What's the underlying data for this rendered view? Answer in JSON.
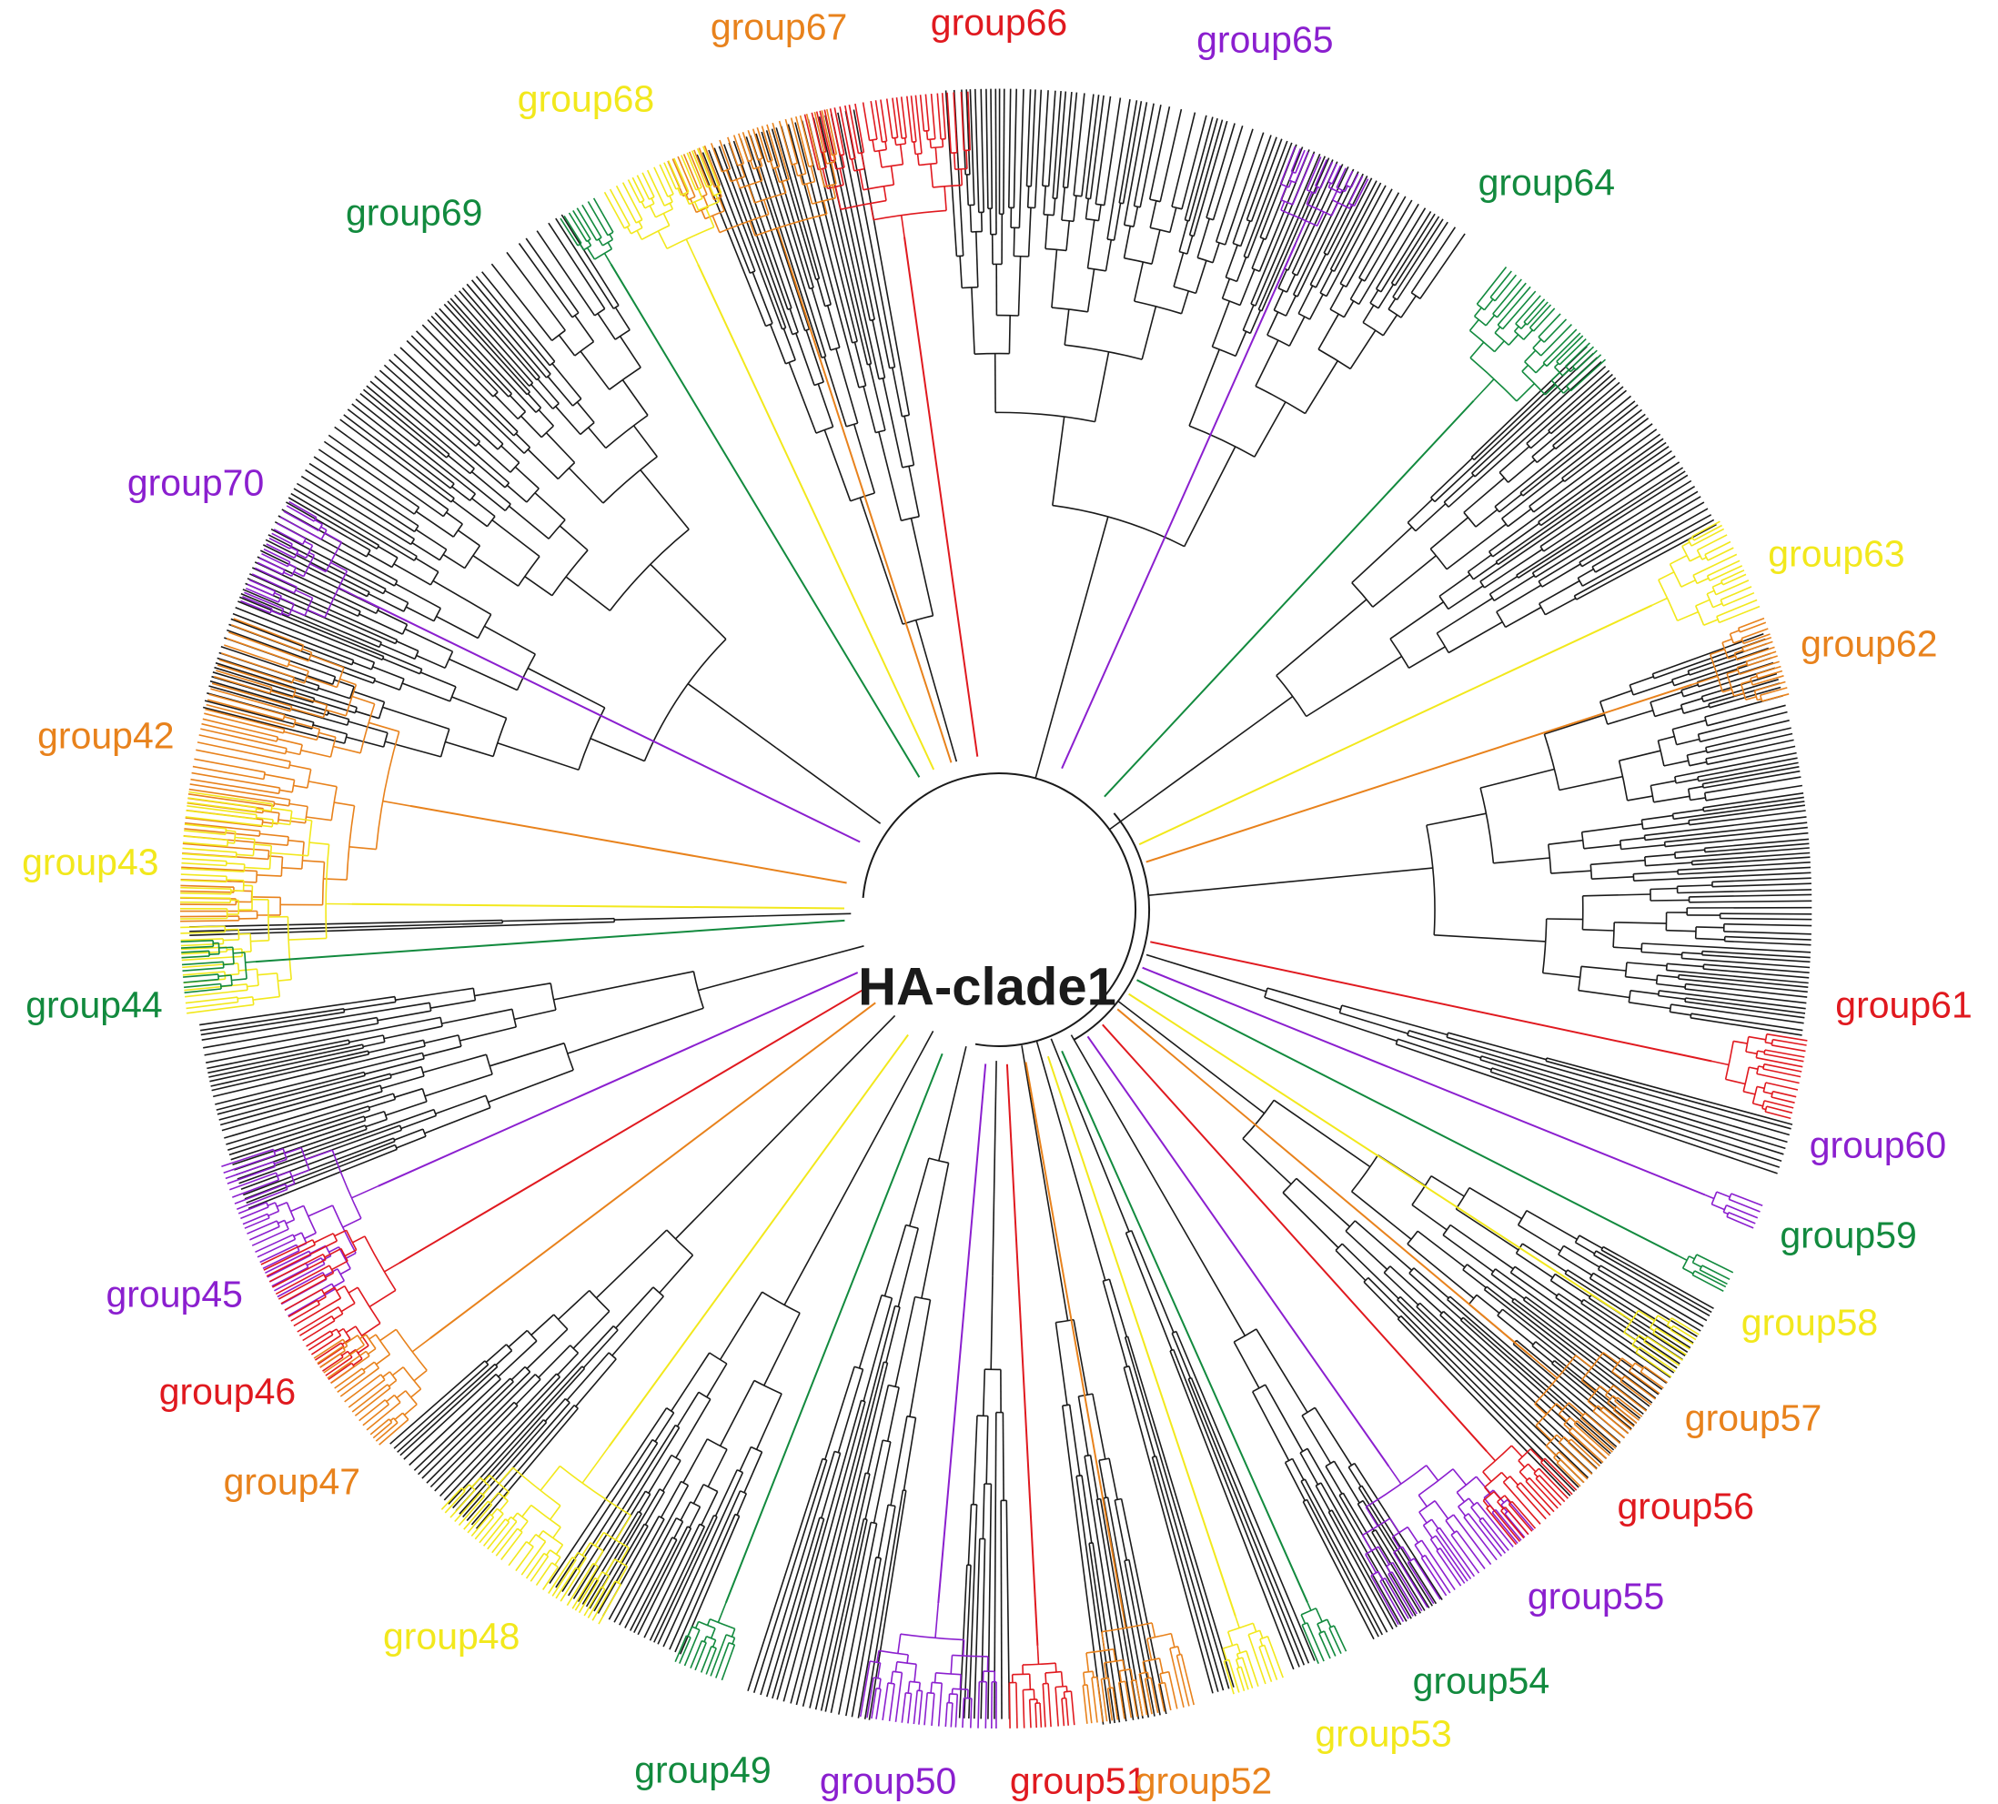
{
  "title": "HA-clade1",
  "colors": {
    "branch": "#1a1a1a",
    "red": "#e0191f",
    "orange": "#e8821c",
    "yellow": "#f2e81c",
    "green": "#128a3e",
    "purple": "#8b1fcf"
  },
  "groups": [
    {
      "label": "group42",
      "color": "orange"
    },
    {
      "label": "group43",
      "color": "yellow"
    },
    {
      "label": "group44",
      "color": "green"
    },
    {
      "label": "group45",
      "color": "purple"
    },
    {
      "label": "group46",
      "color": "red"
    },
    {
      "label": "group47",
      "color": "orange"
    },
    {
      "label": "group48",
      "color": "yellow"
    },
    {
      "label": "group49",
      "color": "green"
    },
    {
      "label": "group50",
      "color": "purple"
    },
    {
      "label": "group51",
      "color": "red"
    },
    {
      "label": "group52",
      "color": "orange"
    },
    {
      "label": "group53",
      "color": "yellow"
    },
    {
      "label": "group54",
      "color": "green"
    },
    {
      "label": "group55",
      "color": "purple"
    },
    {
      "label": "group56",
      "color": "red"
    },
    {
      "label": "group57",
      "color": "orange"
    },
    {
      "label": "group58",
      "color": "yellow"
    },
    {
      "label": "group59",
      "color": "green"
    },
    {
      "label": "group60",
      "color": "purple"
    },
    {
      "label": "group61",
      "color": "red"
    },
    {
      "label": "group62",
      "color": "orange"
    },
    {
      "label": "group63",
      "color": "yellow"
    },
    {
      "label": "group64",
      "color": "green"
    },
    {
      "label": "group65",
      "color": "purple"
    },
    {
      "label": "group66",
      "color": "red"
    },
    {
      "label": "group67",
      "color": "orange"
    },
    {
      "label": "group68",
      "color": "yellow"
    },
    {
      "label": "group69",
      "color": "green"
    },
    {
      "label": "group70",
      "color": "purple"
    }
  ]
}
